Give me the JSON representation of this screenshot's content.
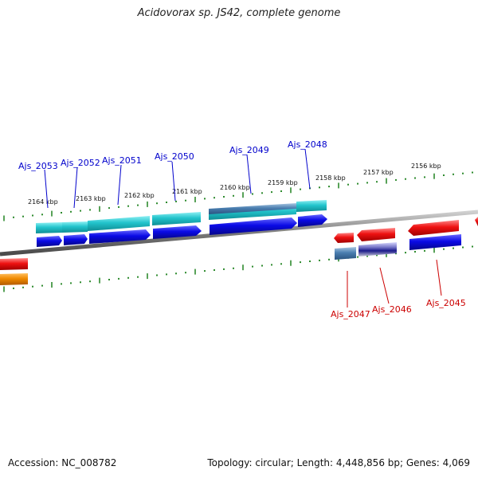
{
  "title": "Acidovorax sp. JS42, complete genome",
  "footer": {
    "accession": "Accession: NC_008782",
    "summary": "Topology: circular; Length: 4,448,856 bp; Genes: 4,069"
  },
  "colors": {
    "backbone": "#888888",
    "tick": "#2e8b2e",
    "forward_label": "#0000cc",
    "reverse_label": "#cc0000",
    "cyan": "#22c4cc",
    "blue": "#0a0ae6",
    "steelblue": "#4a7eb0",
    "red": "#ee1111",
    "navy": "#1a1a8a",
    "orange": "#f08a00"
  },
  "scale_labels": [
    "2164 kbp",
    "2163 kbp",
    "2162 kbp",
    "2161 kbp",
    "2160 kbp",
    "2159 kbp",
    "2158 kbp",
    "2157 kbp",
    "2156 kbp"
  ],
  "forward_genes": [
    "Ajs_2053",
    "Ajs_2052",
    "Ajs_2051",
    "Ajs_2050",
    "Ajs_2049",
    "Ajs_2048"
  ],
  "reverse_genes": [
    "Ajs_2047",
    "Ajs_2046",
    "Ajs_2045"
  ]
}
